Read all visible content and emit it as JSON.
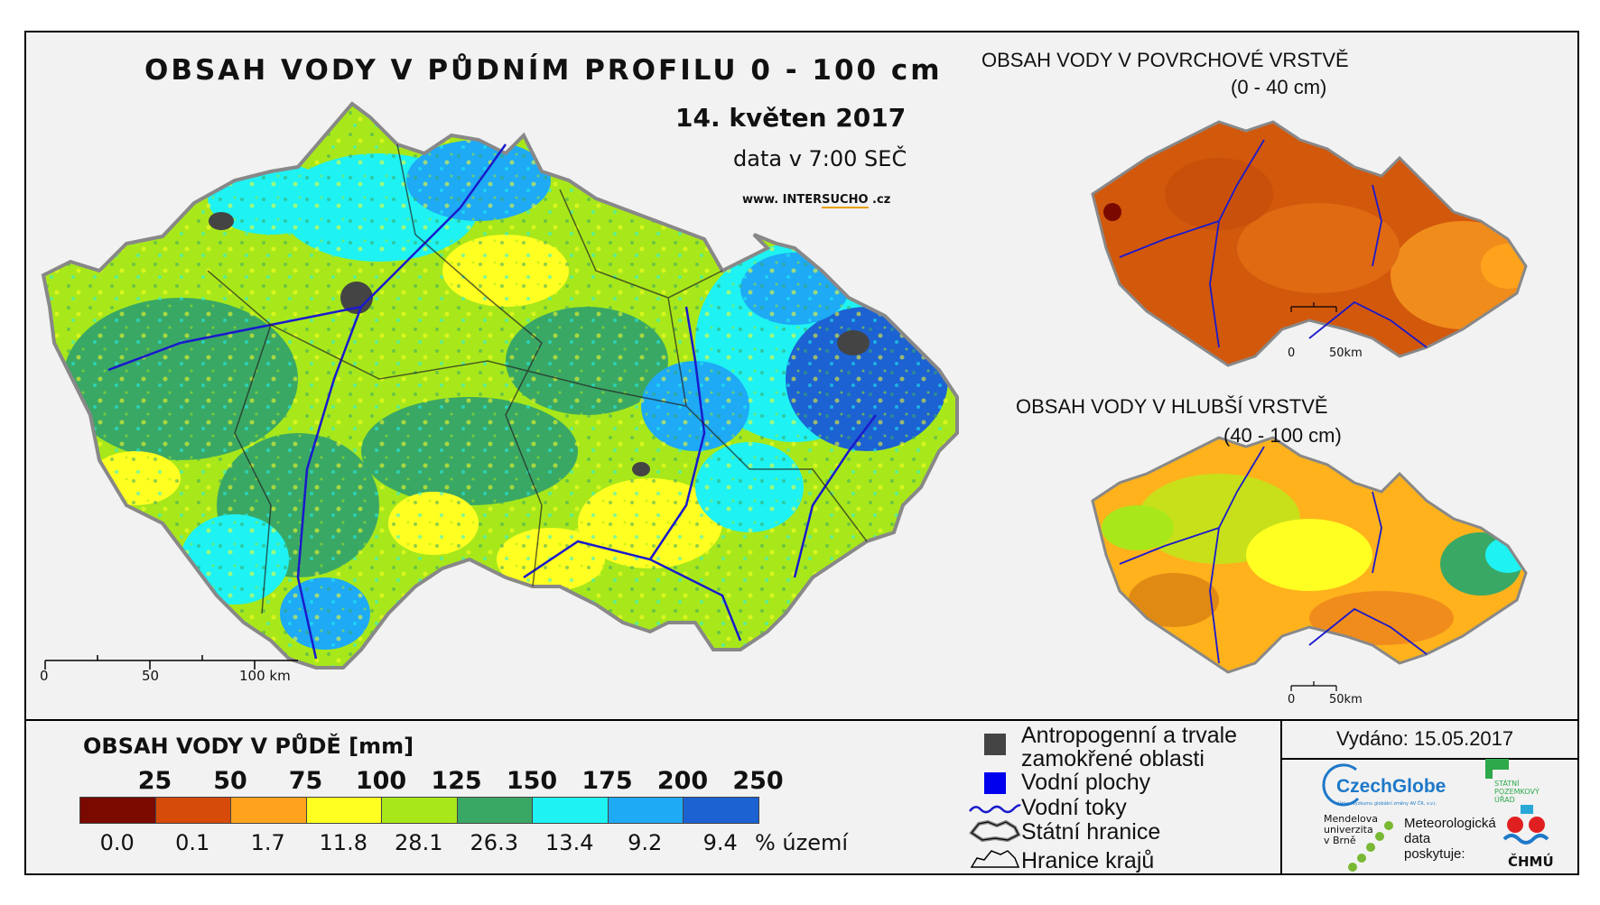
{
  "main_map": {
    "title": "OBSAH VODY V PŮDNÍM PROFILU 0 - 100 cm",
    "date": "14. květen 2017",
    "time_note": "data v 7:00 SEČ",
    "website_prefix": "www. INTER",
    "website_mid": "SUCHO",
    "website_suffix": " .cz",
    "scale": {
      "labels": [
        "0",
        "50",
        "100 km"
      ]
    }
  },
  "surface_map": {
    "title_line1": "OBSAH VODY V POVRCHOVÉ VRSTVĚ",
    "title_line2": "(0 - 40 cm)",
    "scale": {
      "labels": [
        "0",
        "50km"
      ]
    }
  },
  "deep_map": {
    "title_line1": "OBSAH VODY V HLUBŠÍ VRSTVĚ",
    "title_line2": "(40 - 100 cm)",
    "scale": {
      "labels": [
        "0",
        "50km"
      ]
    }
  },
  "legend": {
    "title": "OBSAH VODY V PŮDĚ [mm]",
    "thresholds": [
      "25",
      "50",
      "75",
      "100",
      "125",
      "150",
      "175",
      "200",
      "250"
    ],
    "classes": [
      {
        "color": "#7a0a00",
        "percent": "0.0"
      },
      {
        "color": "#d64a0a",
        "percent": "0.1"
      },
      {
        "color": "#ffa21c",
        "percent": "1.7"
      },
      {
        "color": "#ffff22",
        "percent": "11.8"
      },
      {
        "color": "#a8e81a",
        "percent": "28.1"
      },
      {
        "color": "#3aa865",
        "percent": "26.3"
      },
      {
        "color": "#1ef2f2",
        "percent": "13.4"
      },
      {
        "color": "#1eaaf5",
        "percent": "9.2"
      },
      {
        "color": "#1c62d2",
        "percent": "9.4"
      }
    ],
    "percent_unit": "% území"
  },
  "symbols": {
    "anthropogenic_line1": "Antropogenní a trvale",
    "anthropogenic_line2": "zamokřené oblasti",
    "water_bodies": "Vodní plochy",
    "rivers": "Vodní toky",
    "state_border": "Státní hranice",
    "region_border": "Hranice krajů"
  },
  "issued": "Vydáno: 15.05.2017",
  "logos": {
    "czechglobe": "CzechGlobe",
    "czechglobe_sub": "Ústav výzkumu globální změny AV ČR, v.v.i.",
    "spu_line1": "STÁTNÍ",
    "spu_line2": "POZEMKOVÝ",
    "spu_line3": "ÚŘAD",
    "mendel_line1": "Mendelova",
    "mendel_line2": "univerzita",
    "mendel_line3": "v Brně",
    "meteo_line1": "Meteorologická",
    "meteo_line2": "data",
    "meteo_line3": "poskytuje:",
    "chmu": "ČHMÚ"
  },
  "colors": {
    "anthropogenic": "#444444",
    "water_body": "#0000ee",
    "river": "#1a1acc"
  }
}
